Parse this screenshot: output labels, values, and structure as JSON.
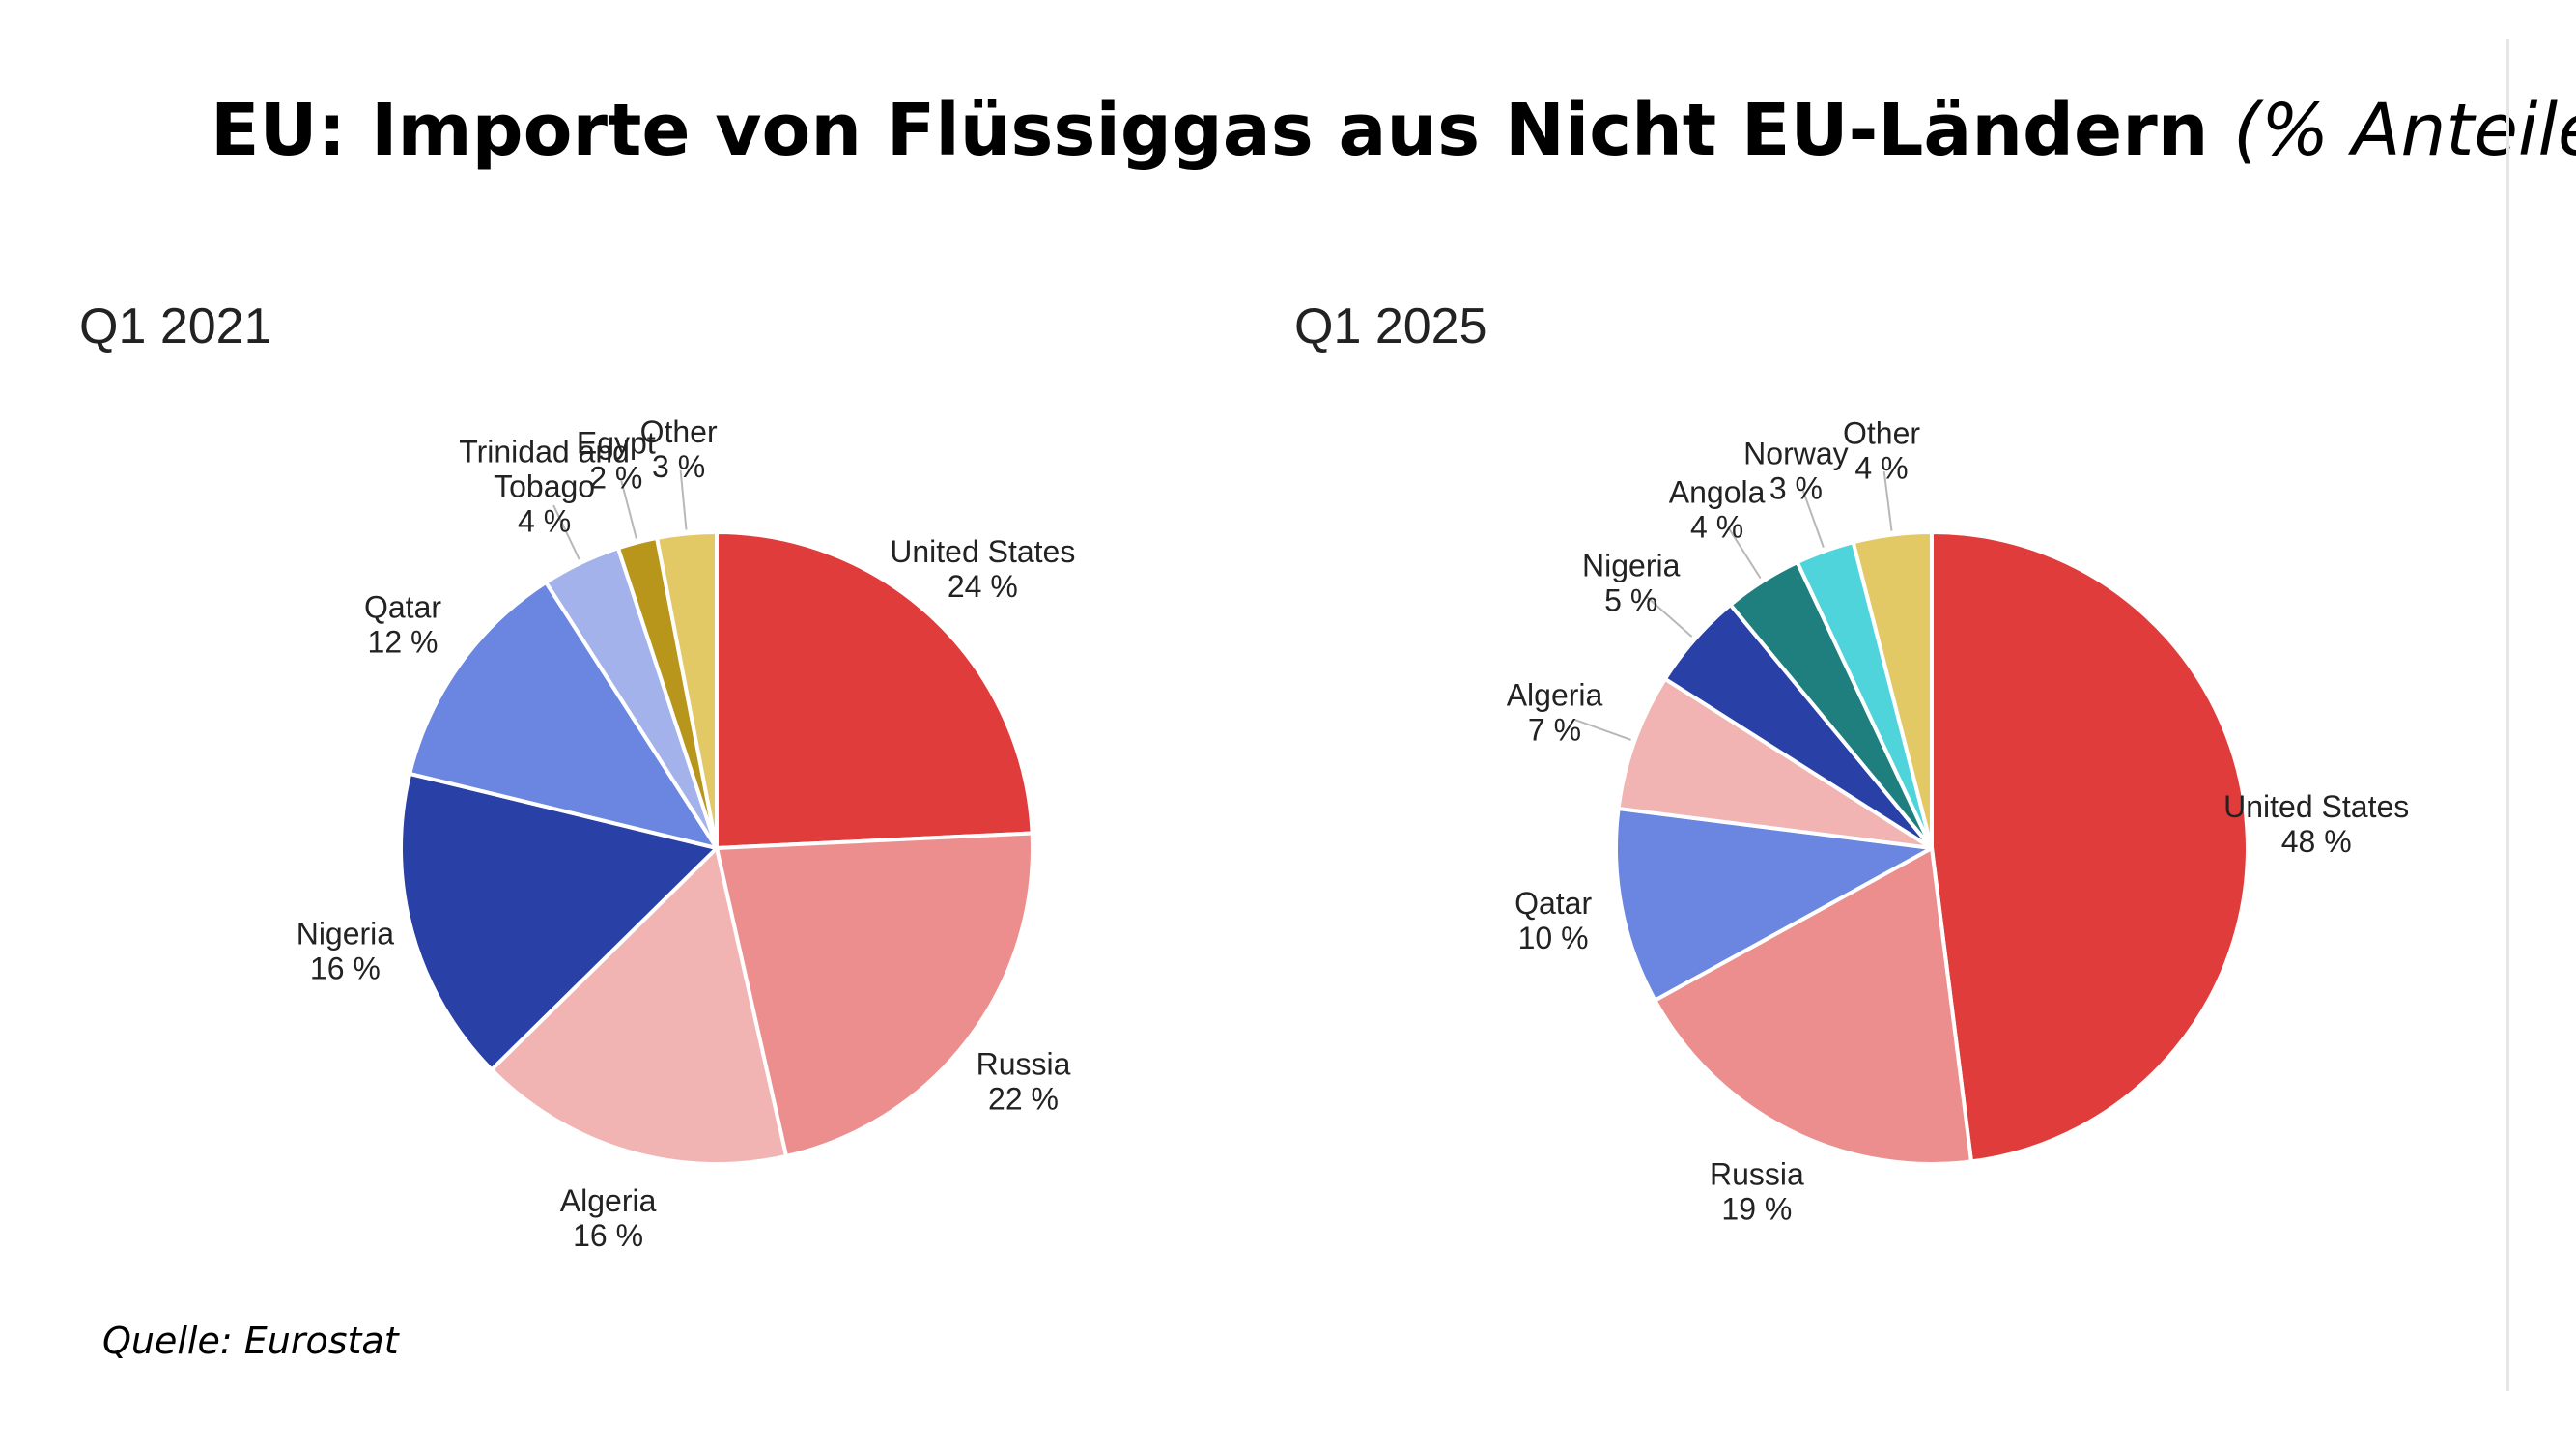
{
  "title": {
    "main": "EU: Importe von Flüssiggas aus Nicht EU-Ländern",
    "sub": "(% Anteile)"
  },
  "source": "Quelle: Eurostat",
  "chart_data": [
    {
      "type": "pie",
      "title": "Q1 2021",
      "unit": "%",
      "slices": [
        {
          "label": "United States",
          "value": 24,
          "color": "#e03c3c"
        },
        {
          "label": "Russia",
          "value": 22,
          "color": "#ec8e8e"
        },
        {
          "label": "Algeria",
          "value": 16,
          "color": "#f2b3b3"
        },
        {
          "label": "Nigeria",
          "value": 16,
          "color": "#2941a7"
        },
        {
          "label": "Qatar",
          "value": 12,
          "color": "#6b86e0"
        },
        {
          "label": "Trinidad and Tobago",
          "value": 4,
          "color": "#a3b2ea"
        },
        {
          "label": "Egypt",
          "value": 2,
          "color": "#b8961c"
        },
        {
          "label": "Other",
          "value": 3,
          "color": "#e3c965"
        }
      ]
    },
    {
      "type": "pie",
      "title": "Q1 2025",
      "unit": "%",
      "slices": [
        {
          "label": "United States",
          "value": 48,
          "color": "#e03c3c"
        },
        {
          "label": "Russia",
          "value": 19,
          "color": "#ec8e8e"
        },
        {
          "label": "Qatar",
          "value": 10,
          "color": "#6b86e0"
        },
        {
          "label": "Algeria",
          "value": 7,
          "color": "#f2b3b3"
        },
        {
          "label": "Nigeria",
          "value": 5,
          "color": "#2941a7"
        },
        {
          "label": "Angola",
          "value": 4,
          "color": "#1f7f7f"
        },
        {
          "label": "Norway",
          "value": 3,
          "color": "#4fd4dc"
        },
        {
          "label": "Other",
          "value": 4,
          "color": "#e3c965"
        }
      ]
    }
  ]
}
